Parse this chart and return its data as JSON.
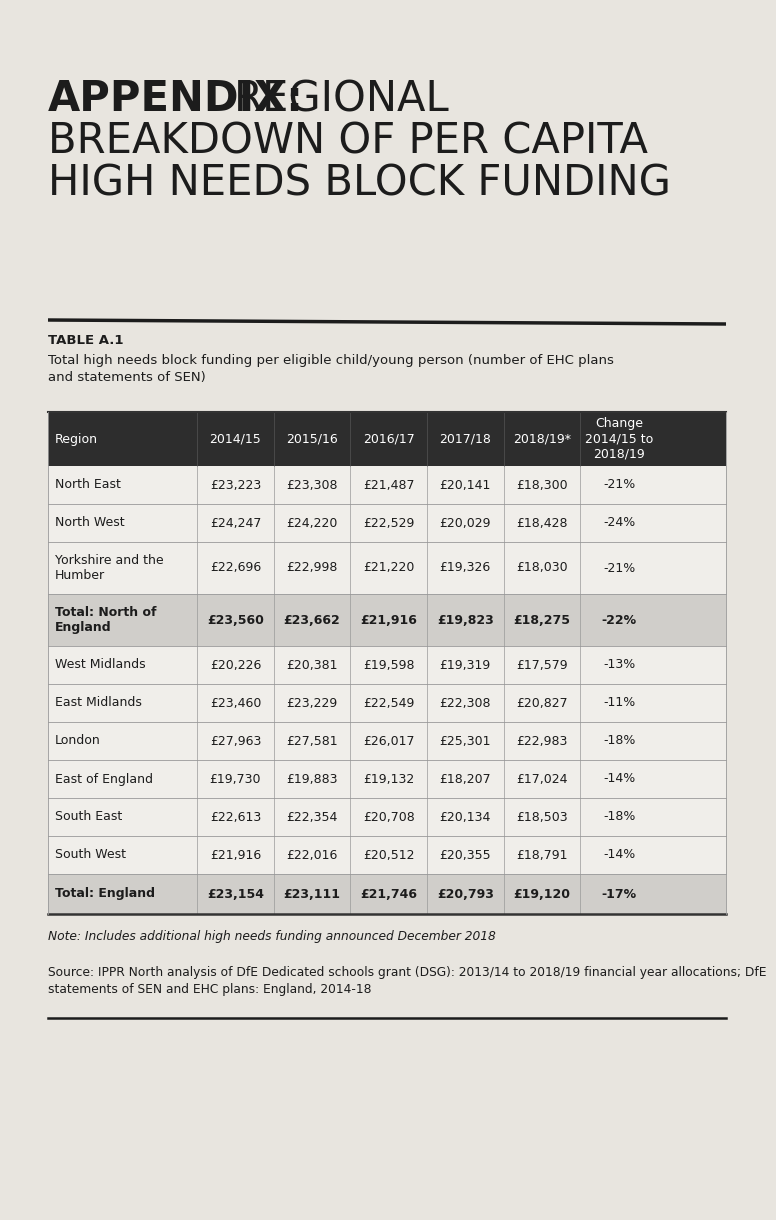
{
  "title_bold": "APPENDIX:",
  "title_rest_line1": " REGIONAL",
  "title_line2": "BREAKDOWN OF PER CAPITA",
  "title_line3": "HIGH NEEDS BLOCK FUNDING",
  "table_label": "TABLE A.1",
  "table_subtitle": "Total high needs block funding per eligible child/young person (number of EHC plans\nand statements of SEN)",
  "columns": [
    "Region",
    "2014/15",
    "2015/16",
    "2016/17",
    "2017/18",
    "2018/19*",
    "Change\n2014/15 to\n2018/19"
  ],
  "rows": [
    [
      "North East",
      "£23,223",
      "£23,308",
      "£21,487",
      "£20,141",
      "£18,300",
      "-21%"
    ],
    [
      "North West",
      "£24,247",
      "£24,220",
      "£22,529",
      "£20,029",
      "£18,428",
      "-24%"
    ],
    [
      "Yorkshire and the\nHumber",
      "£22,696",
      "£22,998",
      "£21,220",
      "£19,326",
      "£18,030",
      "-21%"
    ],
    [
      "Total: North of\nEngland",
      "£23,560",
      "£23,662",
      "£21,916",
      "£19,823",
      "£18,275",
      "-22%"
    ],
    [
      "West Midlands",
      "£20,226",
      "£20,381",
      "£19,598",
      "£19,319",
      "£17,579",
      "-13%"
    ],
    [
      "East Midlands",
      "£23,460",
      "£23,229",
      "£22,549",
      "£22,308",
      "£20,827",
      "-11%"
    ],
    [
      "London",
      "£27,963",
      "£27,581",
      "£26,017",
      "£25,301",
      "£22,983",
      "-18%"
    ],
    [
      "East of England",
      "£19,730",
      "£19,883",
      "£19,132",
      "£18,207",
      "£17,024",
      "-14%"
    ],
    [
      "South East",
      "£22,613",
      "£22,354",
      "£20,708",
      "£20,134",
      "£18,503",
      "-18%"
    ],
    [
      "South West",
      "£21,916",
      "£22,016",
      "£20,512",
      "£20,355",
      "£18,791",
      "-14%"
    ],
    [
      "Total: England",
      "£23,154",
      "£23,111",
      "£21,746",
      "£20,793",
      "£19,120",
      "-17%"
    ]
  ],
  "bold_rows": [
    3,
    10
  ],
  "shaded_rows": [
    3,
    10
  ],
  "note": "Note: Includes additional high needs funding announced December 2018",
  "source": "Source: IPPR North analysis of DfE Dedicated schools grant (DSG): 2013/14 to 2018/19 financial year allocations; DfE\nstatements of SEN and EHC plans: England, 2014-18",
  "header_bg": "#2d2d2d",
  "header_fg": "#ffffff",
  "shaded_bg": "#d0ceca",
  "row_bg_white": "#f0eeea",
  "border_color": "#999999",
  "page_bg": "#e8e5df",
  "title_fontsize": 30,
  "table_fontsize": 9
}
